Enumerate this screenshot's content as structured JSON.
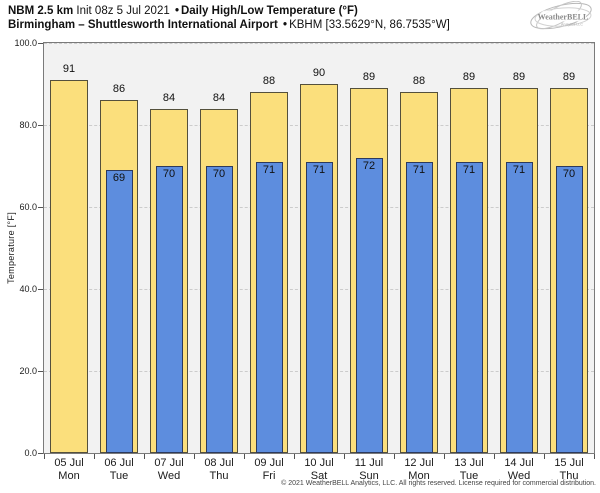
{
  "header": {
    "title_model": "NBM 2.5 km",
    "title_init": "Init 08z 5 Jul 2021",
    "sep": "•",
    "title_product": "Daily High/Low Temperature (°F)",
    "subtitle_location": "Birmingham – Shuttlesworth International Airport",
    "subtitle_station": "KBHM [33.5629°N, 86.7535°W]",
    "logo_text": "WeatherBELL",
    "logo_sub": "Analytics LLC"
  },
  "chart_data": {
    "type": "bar",
    "title": "NBM 2.5 km Init 08z 5 Jul 2021 • Daily High/Low Temperature (°F)",
    "subtitle": "Birmingham – Shuttlesworth International Airport • KBHM [33.5629°N, 86.7535°W]",
    "ylabel": "Temperature [°F]",
    "ylim": [
      0,
      100
    ],
    "yticks": [
      0,
      20,
      40,
      60,
      80,
      100
    ],
    "ytick_labels": [
      "0.0",
      "20.0",
      "40.0",
      "60.0",
      "80.0",
      "100.0"
    ],
    "grid": "horizontal-dashed",
    "legend": "none",
    "bar_value_labels": true,
    "categories": [
      {
        "date": "05 Jul",
        "day": "Mon"
      },
      {
        "date": "06 Jul",
        "day": "Tue"
      },
      {
        "date": "07 Jul",
        "day": "Wed"
      },
      {
        "date": "08 Jul",
        "day": "Thu"
      },
      {
        "date": "09 Jul",
        "day": "Fri"
      },
      {
        "date": "10 Jul",
        "day": "Sat"
      },
      {
        "date": "11 Jul",
        "day": "Sun"
      },
      {
        "date": "12 Jul",
        "day": "Mon"
      },
      {
        "date": "13 Jul",
        "day": "Tue"
      },
      {
        "date": "14 Jul",
        "day": "Wed"
      },
      {
        "date": "15 Jul",
        "day": "Thu"
      }
    ],
    "series": [
      {
        "name": "Daily High",
        "color": "#FBDF7C",
        "values": [
          91,
          86,
          84,
          84,
          88,
          90,
          89,
          88,
          89,
          89,
          89
        ]
      },
      {
        "name": "Daily Low",
        "color": "#5D8DDE",
        "values": [
          null,
          69,
          70,
          70,
          71,
          71,
          72,
          71,
          71,
          71,
          70
        ]
      }
    ]
  },
  "colors": {
    "plot_background": "#F2F2F2",
    "frame": "#7A7A7A",
    "gridline": "#CCCCCC",
    "high_bar": "#FBDF7C",
    "low_bar": "#5D8DDE"
  },
  "footer": {
    "copyright": "© 2021 WeatherBELL Analytics, LLC. All rights reserved. License required for commercial distribution."
  }
}
